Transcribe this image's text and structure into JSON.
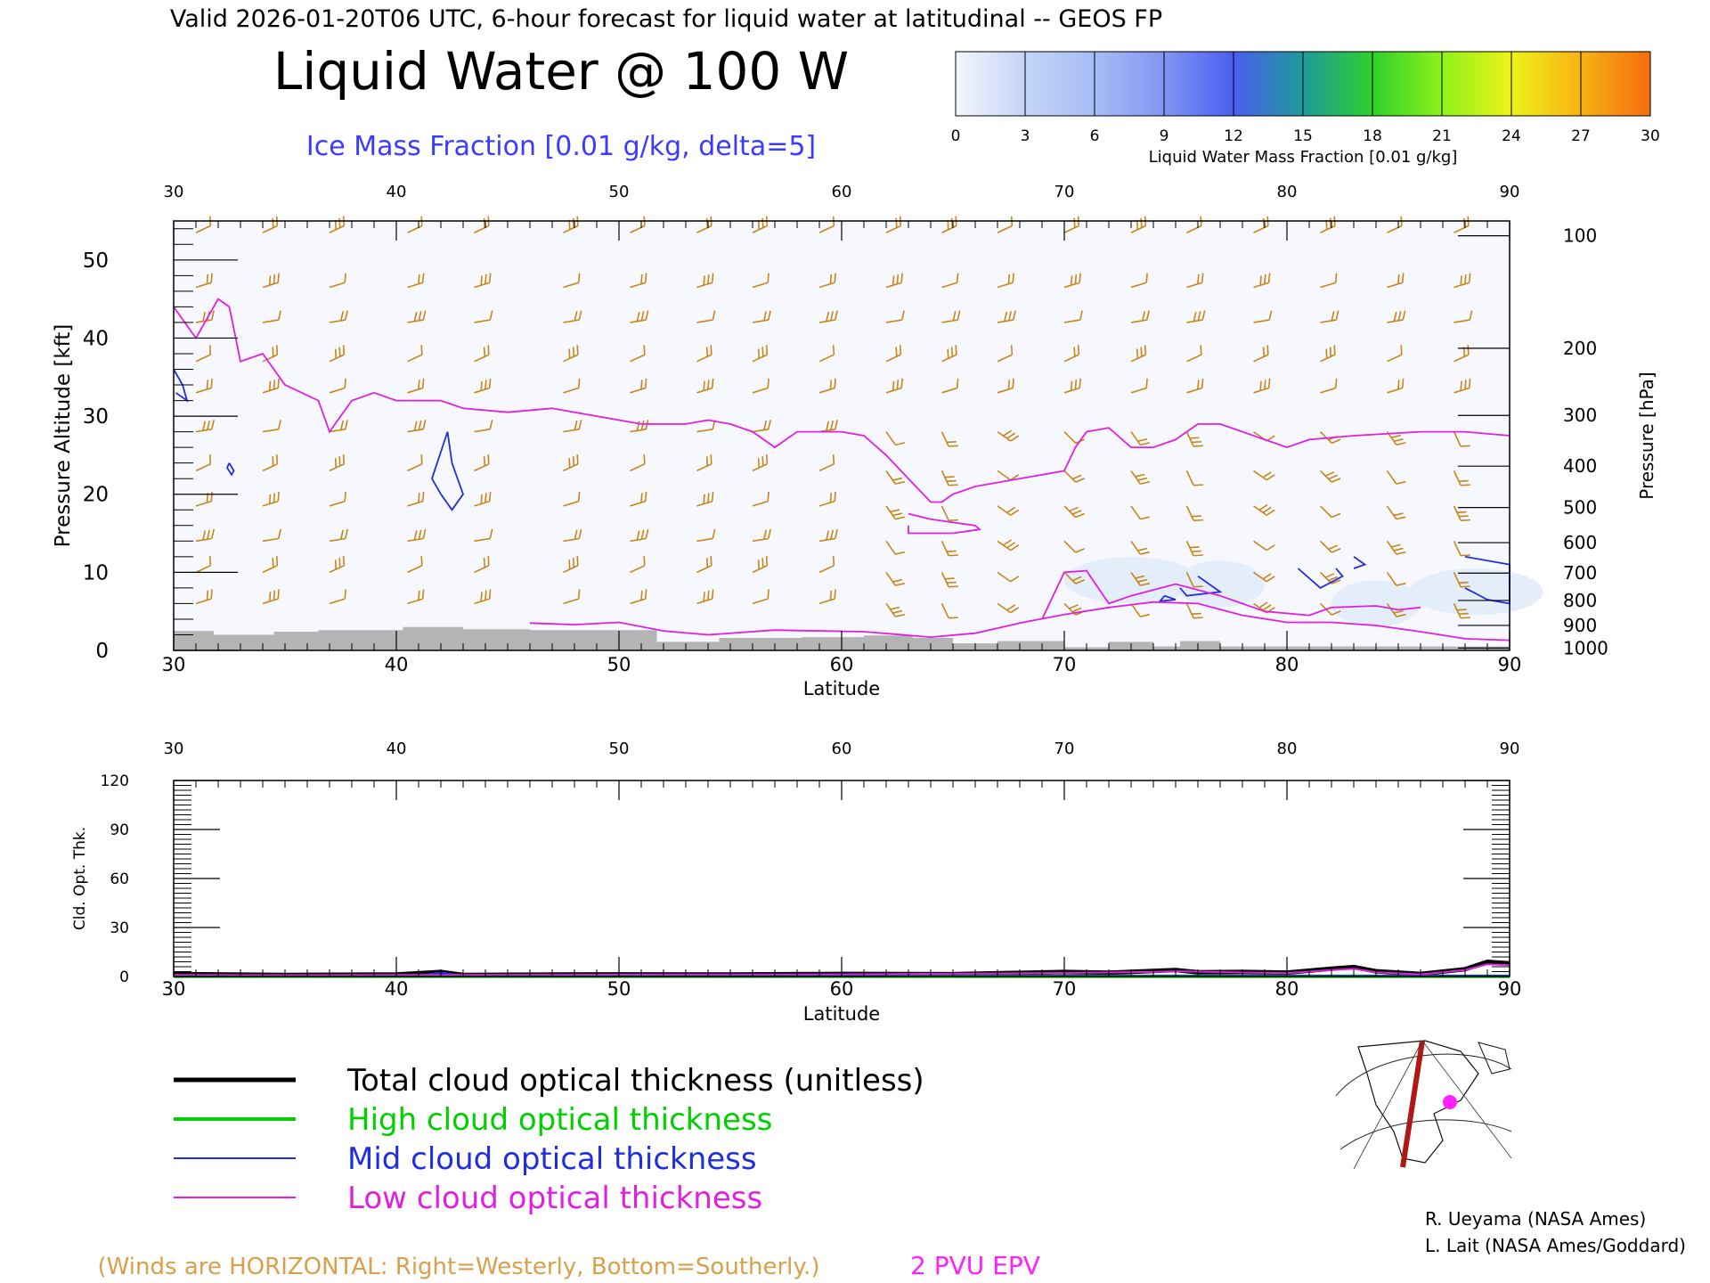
{
  "header": {
    "valid_line": "Valid 2026-01-20T06 UTC, 6-hour forecast for liquid water at latitudinal -- GEOS FP",
    "title": "Liquid Water @ 100 W",
    "subtitle": "Ice Mass Fraction [0.01 g/kg, delta=5]"
  },
  "colorbar": {
    "label": "Liquid Water Mass Fraction [0.01 g/kg]",
    "ticks": [
      "0",
      "3",
      "6",
      "9",
      "12",
      "15",
      "18",
      "21",
      "24",
      "27",
      "30"
    ],
    "colors": [
      "#f4f6fc",
      "#c4d4f7",
      "#a6bcf6",
      "#8196f3",
      "#4a5ef0",
      "#1f9a9b",
      "#2fd02c",
      "#8cf21a",
      "#eef21a",
      "#f7b212",
      "#f46d10"
    ]
  },
  "colors": {
    "wind_barbs": "#c8861a",
    "ice_contour": "#1f2ee0",
    "tropopause": "#e01fe0",
    "terrain": "#b4b4b4",
    "legend_winds": "#d8a04a",
    "legend_pvu": "#ff1fff"
  },
  "chart_data": [
    {
      "type": "heatmap",
      "title": "Liquid Water @ 100 W",
      "xlabel": "Latitude",
      "ylabel": "Pressure Altitude [kft]",
      "ylabel_right": "Pressure [hPa]",
      "xlim": [
        30,
        90
      ],
      "ylim": [
        0,
        55
      ],
      "x_ticks": [
        "30",
        "40",
        "50",
        "60",
        "70",
        "80",
        "90"
      ],
      "y_ticks": [
        "0",
        "10",
        "20",
        "30",
        "40",
        "50"
      ],
      "pressure_ticks": [
        {
          "label": "100",
          "kft": 53.1
        },
        {
          "label": "200",
          "kft": 38.7
        },
        {
          "label": "300",
          "kft": 30.1
        },
        {
          "label": "400",
          "kft": 23.6
        },
        {
          "label": "500",
          "kft": 18.3
        },
        {
          "label": "600",
          "kft": 13.8
        },
        {
          "label": "700",
          "kft": 9.9
        },
        {
          "label": "800",
          "kft": 6.4
        },
        {
          "label": "900",
          "kft": 3.2
        },
        {
          "label": "1000",
          "kft": 0.3
        }
      ],
      "epv_2pvu": [
        [
          30,
          44
        ],
        [
          31,
          40
        ],
        [
          32,
          45
        ],
        [
          32.5,
          44
        ],
        [
          33,
          37
        ],
        [
          34,
          38
        ],
        [
          35,
          34
        ],
        [
          36.5,
          32
        ],
        [
          37,
          28
        ],
        [
          38,
          32
        ],
        [
          39,
          33
        ],
        [
          40,
          32
        ],
        [
          41,
          32
        ],
        [
          42,
          32
        ],
        [
          43,
          31
        ],
        [
          45,
          30.5
        ],
        [
          47,
          31
        ],
        [
          49,
          30
        ],
        [
          51,
          29
        ],
        [
          53,
          29
        ],
        [
          54,
          29.5
        ],
        [
          55,
          29
        ],
        [
          56,
          28
        ],
        [
          57,
          26
        ],
        [
          58,
          28
        ],
        [
          60,
          28
        ],
        [
          61,
          27.5
        ],
        [
          62,
          25
        ],
        [
          63,
          22
        ],
        [
          64,
          19
        ],
        [
          64.5,
          19
        ],
        [
          65,
          20
        ],
        [
          66,
          21
        ],
        [
          68,
          22
        ],
        [
          70,
          23
        ],
        [
          70.5,
          26
        ],
        [
          71,
          28
        ],
        [
          72,
          28.5
        ],
        [
          73,
          26
        ],
        [
          74,
          26
        ],
        [
          75,
          27
        ],
        [
          76,
          29
        ],
        [
          77,
          29
        ],
        [
          78,
          28
        ],
        [
          79,
          27
        ],
        [
          80,
          26
        ],
        [
          81,
          27
        ],
        [
          83,
          27.5
        ],
        [
          86,
          28
        ],
        [
          88,
          28
        ],
        [
          90,
          27.5
        ]
      ],
      "epv_low_layer": [
        [
          46,
          3.5
        ],
        [
          48,
          3.3
        ],
        [
          50,
          3.6
        ],
        [
          52,
          2.5
        ],
        [
          54,
          2
        ],
        [
          57,
          2.6
        ],
        [
          61,
          2.4
        ],
        [
          64,
          1.7
        ],
        [
          66,
          2.2
        ],
        [
          68,
          3.5
        ],
        [
          70,
          4.6
        ],
        [
          72,
          5.5
        ],
        [
          74,
          6.2
        ],
        [
          76,
          6
        ],
        [
          78,
          4.5
        ],
        [
          80,
          3.6
        ],
        [
          82,
          3.6
        ],
        [
          84,
          3.2
        ],
        [
          86,
          2.4
        ],
        [
          88,
          1.5
        ],
        [
          90,
          1.3
        ]
      ],
      "epv_bump": [
        [
          69,
          4
        ],
        [
          70,
          10
        ],
        [
          71,
          10.2
        ],
        [
          72,
          6
        ],
        [
          73,
          7
        ],
        [
          75,
          8.5
        ],
        [
          77,
          7
        ],
        [
          79,
          5
        ],
        [
          81,
          4.5
        ],
        [
          82,
          5.5
        ],
        [
          84,
          5.7
        ],
        [
          85,
          5.2
        ],
        [
          86,
          5.5
        ]
      ],
      "epv_blob": [
        [
          63,
          17.5
        ],
        [
          64,
          16.8
        ],
        [
          66,
          16
        ],
        [
          66.2,
          15.5
        ],
        [
          65,
          15
        ],
        [
          63,
          15
        ],
        [
          63,
          16
        ]
      ],
      "ice_contours": [
        [
          [
            42.3,
            28
          ],
          [
            42.5,
            24
          ],
          [
            43,
            20
          ],
          [
            42.5,
            18
          ],
          [
            42,
            20
          ],
          [
            41.6,
            22
          ],
          [
            42.3,
            28
          ]
        ],
        [
          [
            30,
            36
          ],
          [
            30.4,
            34
          ],
          [
            30.6,
            32
          ],
          [
            30.1,
            33
          ]
        ],
        [
          [
            32.5,
            24
          ],
          [
            32.7,
            23
          ],
          [
            32.6,
            22.5
          ],
          [
            32.4,
            23.4
          ],
          [
            32.5,
            24
          ]
        ],
        [
          [
            74.5,
            7
          ],
          [
            75,
            6.5
          ],
          [
            74.3,
            6.3
          ],
          [
            74.5,
            7
          ]
        ],
        [
          [
            76,
            9.5
          ],
          [
            77,
            7.5
          ],
          [
            75.5,
            7
          ],
          [
            75.2,
            8
          ]
        ],
        [
          [
            80.5,
            10.5
          ],
          [
            81.5,
            8
          ],
          [
            82.5,
            9.5
          ],
          [
            82.2,
            10.5
          ]
        ],
        [
          [
            83,
            12
          ],
          [
            83.5,
            11
          ],
          [
            83,
            10.5
          ]
        ],
        [
          [
            88,
            12
          ],
          [
            90,
            11
          ],
          [
            90,
            6
          ],
          [
            89,
            6.5
          ],
          [
            88,
            8
          ]
        ]
      ],
      "terrain": [
        [
          30,
          2.5
        ],
        [
          31.8,
          2
        ],
        [
          34.5,
          2.4
        ],
        [
          36.5,
          2.6
        ],
        [
          40.3,
          3
        ],
        [
          43,
          2.7
        ],
        [
          46,
          2.6
        ],
        [
          51.7,
          1.1
        ],
        [
          54.5,
          1.6
        ],
        [
          58.2,
          1.7
        ],
        [
          61,
          1.9
        ],
        [
          63.2,
          1.6
        ],
        [
          65,
          0.9
        ],
        [
          67,
          1.2
        ],
        [
          70,
          0.4
        ],
        [
          72,
          1.1
        ],
        [
          74,
          0.5
        ],
        [
          75.2,
          1.2
        ],
        [
          77,
          0.5
        ],
        [
          90,
          0.2
        ]
      ],
      "wind_barb_lats": [
        31,
        34,
        37,
        40.5,
        43.5,
        47.5,
        50.5,
        53.5,
        56,
        59,
        62,
        64.5,
        67,
        70,
        73,
        75.5,
        78.5,
        81.5,
        84.5,
        87.5
      ],
      "wind_barb_levels": [
        53.5,
        46.5,
        42,
        37,
        33,
        28,
        23,
        18.5,
        14,
        10,
        6
      ],
      "liquid_water_patches": [
        [
          73,
          9,
          6
        ],
        [
          77,
          8.5,
          4
        ],
        [
          84,
          6,
          4
        ],
        [
          88.5,
          7.5,
          6
        ]
      ]
    },
    {
      "type": "line",
      "xlabel": "Latitude",
      "ylabel": "Cld. Opt. Thk.",
      "xlim": [
        30,
        90
      ],
      "ylim": [
        0,
        120
      ],
      "x_ticks": [
        "30",
        "40",
        "50",
        "60",
        "70",
        "80",
        "90"
      ],
      "y_ticks": [
        "0",
        "30",
        "60",
        "90",
        "120"
      ],
      "series": [
        {
          "name": "Total cloud optical thickness (unitless)",
          "color": "#000000",
          "x": [
            30,
            35,
            40,
            42,
            43,
            50,
            55,
            60,
            65,
            70,
            72,
            74,
            75,
            76,
            78,
            80,
            82,
            83,
            84,
            86,
            88,
            89,
            90
          ],
          "y": [
            1.5,
            1,
            1.2,
            2.8,
            1,
            1.3,
            1.2,
            1.6,
            1.4,
            2.8,
            2.3,
            3.4,
            4,
            2.6,
            2.8,
            2.4,
            4.8,
            5.8,
            3.2,
            1.6,
            4.5,
            9,
            8
          ]
        },
        {
          "name": "High cloud optical thickness",
          "color": "#00d000",
          "x": [
            30,
            90
          ],
          "y": [
            0.1,
            0.1
          ]
        },
        {
          "name": "Mid cloud optical thickness",
          "color": "#1f2ee0",
          "x": [
            30,
            41,
            42,
            43,
            60,
            90
          ],
          "y": [
            0.4,
            0.6,
            2.4,
            0.5,
            0.3,
            0.5
          ]
        },
        {
          "name": "Low cloud optical thickness",
          "color": "#e01fe0",
          "x": [
            30,
            35,
            40,
            50,
            60,
            70,
            74,
            75,
            80,
            82,
            83,
            84,
            86,
            88,
            89,
            90
          ],
          "y": [
            1,
            0.8,
            0.9,
            1.1,
            1.3,
            2.2,
            2.8,
            3.2,
            2,
            4,
            4.7,
            2.6,
            1.3,
            4,
            7.5,
            7
          ]
        }
      ]
    }
  ],
  "legend": [
    {
      "label": "Total cloud optical thickness (unitless)",
      "color": "#000000",
      "weight": 5
    },
    {
      "label": "High cloud optical thickness",
      "color": "#00d000",
      "weight": 4
    },
    {
      "label": "Mid cloud optical thickness",
      "color": "#1f2ee0",
      "weight": 2
    },
    {
      "label": "Low cloud optical thickness",
      "color": "#e01fe0",
      "weight": 2
    }
  ],
  "footer": {
    "winds_note": "(Winds are HORIZONTAL: Right=Westerly, Bottom=Southerly.)",
    "pvu_label": "2 PVU EPV",
    "credit1": "R. Ueyama (NASA Ames)",
    "credit2": "L. Lait (NASA Ames/Goddard)"
  }
}
